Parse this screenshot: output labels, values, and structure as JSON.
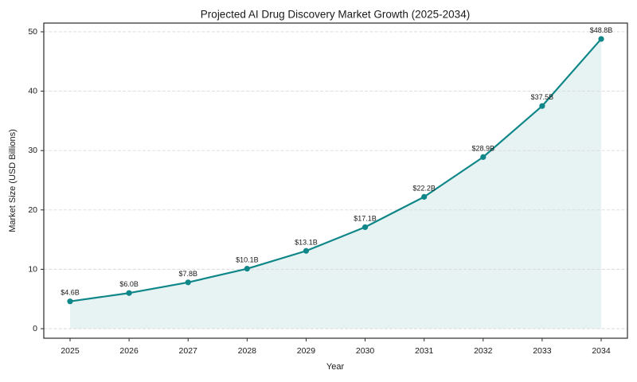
{
  "chart_data": {
    "type": "line",
    "title": "Projected AI Drug Discovery Market Growth (2025-2034)",
    "xlabel": "Year",
    "ylabel": "Market Size (USD Billions)",
    "categories": [
      "2025",
      "2026",
      "2027",
      "2028",
      "2029",
      "2030",
      "2031",
      "2032",
      "2033",
      "2034"
    ],
    "values": [
      4.6,
      6.0,
      7.8,
      10.1,
      13.1,
      17.1,
      22.2,
      28.9,
      37.5,
      48.8
    ],
    "point_labels": [
      "$4.6B",
      "$6.0B",
      "$7.8B",
      "$10.1B",
      "$13.1B",
      "$17.1B",
      "$22.2B",
      "$28.9B",
      "$37.5B",
      "$48.8B"
    ],
    "yticks": [
      0,
      10,
      20,
      30,
      40,
      50
    ],
    "ylim": [
      -1.61,
      51.47
    ],
    "grid": "horizontal-dashed",
    "legend": "none",
    "area_fill": true,
    "colors": {
      "line": "#0f8688",
      "marker": "#0f8688",
      "fill": "rgba(15,134,136,0.10)",
      "grid": "#d9d9d9",
      "spine": "#2a2a2a",
      "text": "#1a1a1a"
    }
  }
}
